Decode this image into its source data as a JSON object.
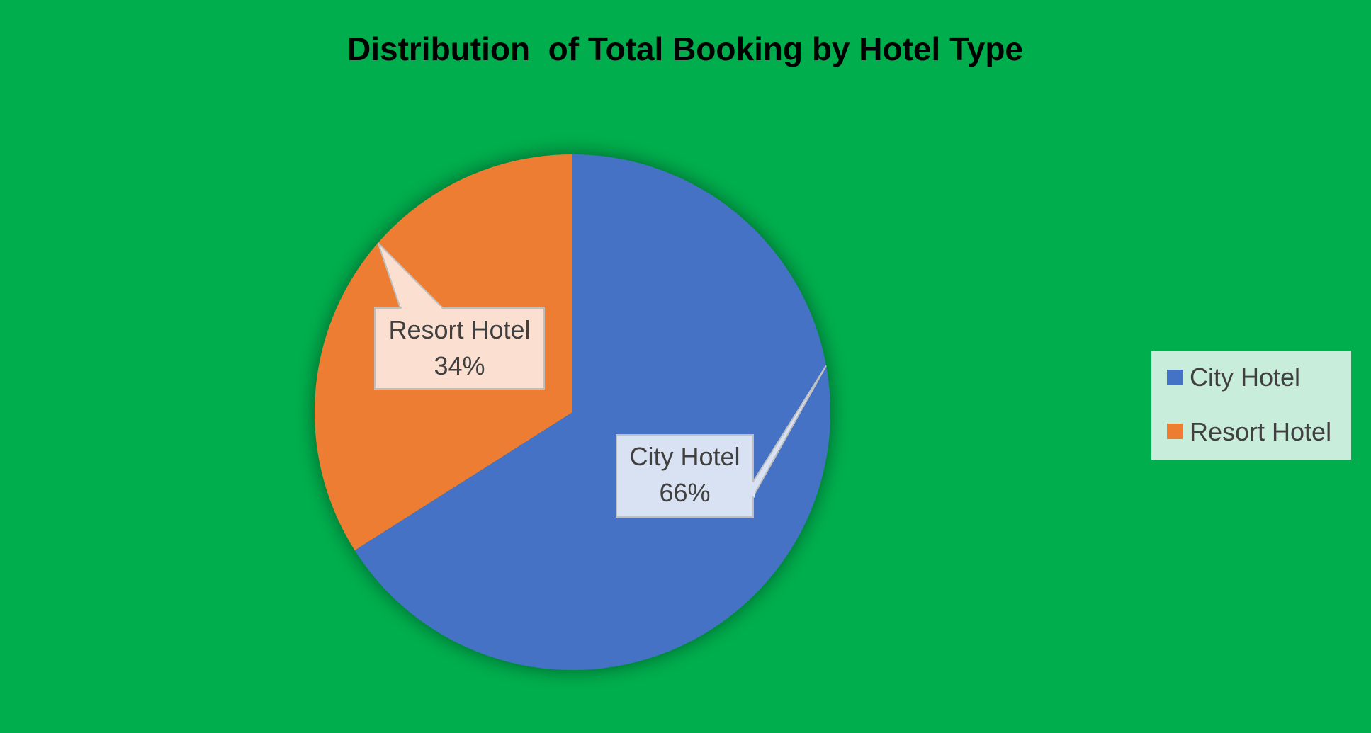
{
  "background_color": "#00AE4D",
  "chart_data": {
    "type": "pie",
    "title": "Distribution  of Total Booking by Hotel Type",
    "categories": [
      "City Hotel",
      "Resort Hotel"
    ],
    "values": [
      66,
      34
    ],
    "unit": "%",
    "colors": [
      "#4472C4",
      "#ED7D31"
    ],
    "callout_fill_colors": [
      "#D9E2F3",
      "#FBE0D1"
    ],
    "data_labels": [
      "City Hotel\n66%",
      "Resort Hotel\n34%"
    ],
    "start_angle": "12 o'clock",
    "direction": "clockwise",
    "legend": {
      "position": "right",
      "entries": [
        "City Hotel",
        "Resort Hotel"
      ],
      "background": "#C9EDDB"
    }
  }
}
